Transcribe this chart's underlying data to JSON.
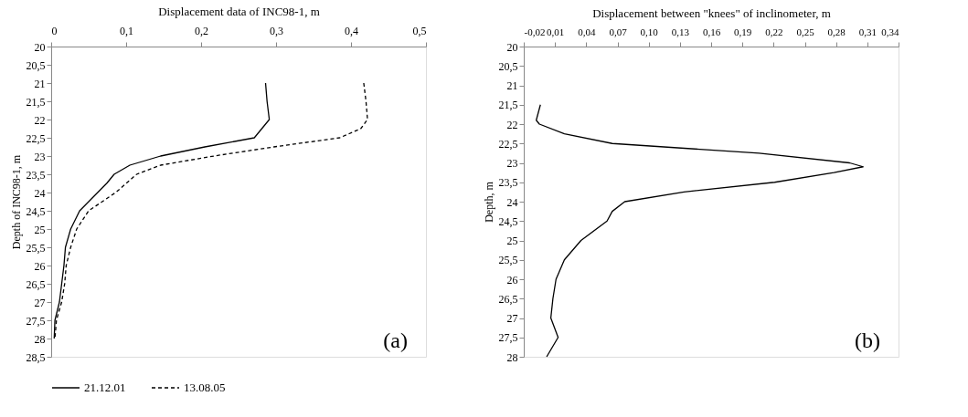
{
  "chart_data": [
    {
      "type": "line",
      "orientation": "horizontal",
      "xlabel": "Displacement data of INC98-1, m",
      "ylabel": "Depth of INC98-1, m",
      "xlim": [
        0,
        0.5
      ],
      "xticks": [
        0,
        {
          "value": 0.1,
          "label": "0,1"
        },
        {
          "value": 0.2,
          "label": "0,2"
        },
        {
          "value": 0.3,
          "label": "0,3"
        },
        {
          "value": 0.4,
          "label": "0,4"
        },
        {
          "value": 0.5,
          "label": "0,5"
        }
      ],
      "ylim": [
        28.5,
        20
      ],
      "yticks": [
        20,
        {
          "value": 20.5,
          "label": "20,5"
        },
        21,
        {
          "value": 21.5,
          "label": "21,5"
        },
        22,
        {
          "value": 22.5,
          "label": "22,5"
        },
        23,
        {
          "value": 23.5,
          "label": "23,5"
        },
        24,
        {
          "value": 24.5,
          "label": "24,5"
        },
        25,
        {
          "value": 25.5,
          "label": "25,5"
        },
        26,
        {
          "value": 26.5,
          "label": "26,5"
        },
        27,
        {
          "value": 27.5,
          "label": "27,5"
        },
        28,
        {
          "value": 28.5,
          "label": "28,5"
        }
      ],
      "series": [
        {
          "name": "21.12.01",
          "color": "#000000",
          "line_style": "solid",
          "x": [
            21,
            21.5,
            22,
            22.5,
            22.75,
            23,
            23.25,
            23.5,
            23.75,
            24,
            24.5,
            25,
            25.5,
            26,
            26.5,
            27,
            27.5,
            28
          ],
          "values": [
            0.286,
            0.288,
            0.291,
            0.271,
            0.205,
            0.146,
            0.105,
            0.084,
            0.074,
            0.062,
            0.038,
            0.026,
            0.019,
            0.017,
            0.014,
            0.011,
            0.005,
            0.004
          ]
        },
        {
          "name": "13.08.05",
          "color": "#000000",
          "line_style": "dashed",
          "x": [
            21,
            21.5,
            22,
            22.25,
            22.5,
            22.75,
            23,
            23.25,
            23.5,
            24,
            24.5,
            25,
            25.5,
            26,
            26.5,
            27,
            27.5,
            28
          ],
          "values": [
            0.417,
            0.42,
            0.422,
            0.413,
            0.385,
            0.297,
            0.217,
            0.146,
            0.114,
            0.086,
            0.05,
            0.034,
            0.026,
            0.02,
            0.018,
            0.014,
            0.007,
            0.005
          ]
        }
      ],
      "legend": "bottom",
      "grid": false,
      "annotations": [
        "(a)"
      ]
    },
    {
      "type": "line",
      "orientation": "horizontal",
      "xlabel": "Displacement between \"knees\" of inclinometer, m",
      "ylabel": "Depth, m",
      "xlim": [
        -0.02,
        0.34
      ],
      "xticks": [
        {
          "value": -0.02,
          "label": "-0,02"
        },
        {
          "value": 0.01,
          "label": "0,01"
        },
        {
          "value": 0.04,
          "label": "0,04"
        },
        {
          "value": 0.07,
          "label": "0,07"
        },
        {
          "value": 0.1,
          "label": "0,10"
        },
        {
          "value": 0.13,
          "label": "0,13"
        },
        {
          "value": 0.16,
          "label": "0,16"
        },
        {
          "value": 0.19,
          "label": "0,19"
        },
        {
          "value": 0.22,
          "label": "0,22"
        },
        {
          "value": 0.25,
          "label": "0,25"
        },
        {
          "value": 0.28,
          "label": "0,28"
        },
        {
          "value": 0.31,
          "label": "0,31"
        },
        {
          "value": 0.34,
          "label": "0,34"
        }
      ],
      "ylim": [
        28,
        20
      ],
      "yticks": [
        20,
        {
          "value": 20.5,
          "label": "20,5"
        },
        21,
        {
          "value": 21.5,
          "label": "21,5"
        },
        22,
        {
          "value": 22.5,
          "label": "22,5"
        },
        23,
        {
          "value": 23.5,
          "label": "23,5"
        },
        24,
        {
          "value": 24.5,
          "label": "24,5"
        },
        25,
        {
          "value": 25.5,
          "label": "25,5"
        },
        26,
        {
          "value": 26.5,
          "label": "26,5"
        },
        27,
        {
          "value": 27.5,
          "label": "27,5"
        },
        28
      ],
      "series": [
        {
          "color": "#000000",
          "line_style": "solid",
          "x": [
            21.5,
            21.9,
            22,
            22.25,
            22.5,
            22.75,
            23,
            23.1,
            23.25,
            23.5,
            23.75,
            24,
            24.25,
            24.5,
            25,
            25.5,
            26,
            26.5,
            27,
            27.5,
            28
          ],
          "values": [
            -0.004,
            -0.008,
            -0.005,
            0.019,
            0.065,
            0.206,
            0.293,
            0.306,
            0.278,
            0.221,
            0.134,
            0.077,
            0.065,
            0.06,
            0.035,
            0.019,
            0.011,
            0.008,
            0.006,
            0.013,
            0.002
          ]
        }
      ],
      "grid": false,
      "annotations": [
        "(b)"
      ]
    }
  ]
}
